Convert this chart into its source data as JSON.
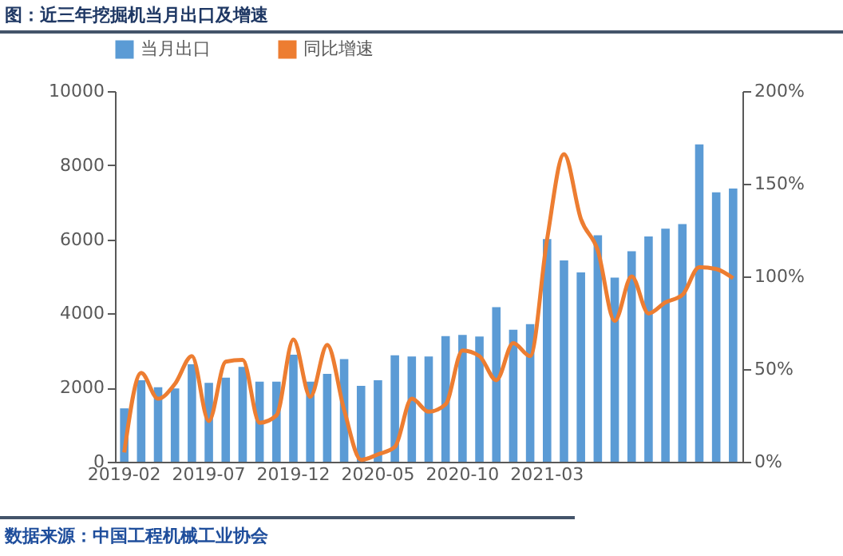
{
  "chart_data": {
    "type": "bar",
    "title": "图：近三年挖掘机当月出口及增速",
    "categories": [
      "2019-02",
      null,
      null,
      null,
      null,
      "2019-07",
      null,
      null,
      null,
      null,
      "2019-12",
      null,
      null,
      null,
      null,
      "2020-05",
      null,
      null,
      null,
      null,
      "2020-10",
      null,
      null,
      null,
      null,
      "2021-03",
      null,
      null,
      null,
      null,
      null,
      null,
      null,
      null,
      null,
      null,
      null
    ],
    "series": [
      {
        "name": "当月出口",
        "color": "#5b9bd5",
        "values": [
          1440,
          2200,
          2010,
          1980,
          2630,
          2130,
          2270,
          2560,
          2160,
          2160,
          2890,
          2160,
          2370,
          2770,
          2050,
          2200,
          2870,
          2840,
          2840,
          3390,
          3420,
          3380,
          4170,
          3560,
          3710,
          6010,
          5430,
          5110,
          6110,
          4970,
          5680,
          6080,
          6290,
          6410,
          8560,
          7270,
          7370
        ]
      },
      {
        "name": "同比增速",
        "type": "line",
        "axis": "y2",
        "color": "#ed7d31",
        "values": [
          5,
          48,
          34,
          42,
          57,
          22,
          54,
          55,
          21,
          25,
          66,
          35,
          63,
          28,
          1,
          4,
          8,
          34,
          27,
          31,
          60,
          57,
          44,
          64,
          57,
          120,
          166,
          131,
          114,
          76,
          100,
          80,
          86,
          90,
          105,
          104,
          99
        ]
      }
    ],
    "ylim": [
      0,
      10000
    ],
    "yticks": [
      0,
      2000,
      4000,
      6000,
      8000,
      10000
    ],
    "y2lim": [
      0,
      200
    ],
    "y2ticks": [
      {
        "value": 0,
        "label": "0%"
      },
      {
        "value": 50,
        "label": "50%"
      },
      {
        "value": 100,
        "label": "100%"
      },
      {
        "value": 150,
        "label": "150%"
      },
      {
        "value": 200,
        "label": "200%"
      }
    ],
    "legend": "top",
    "grid": false,
    "annotations": [
      "数据来源：中国工程机械工业协会"
    ]
  }
}
